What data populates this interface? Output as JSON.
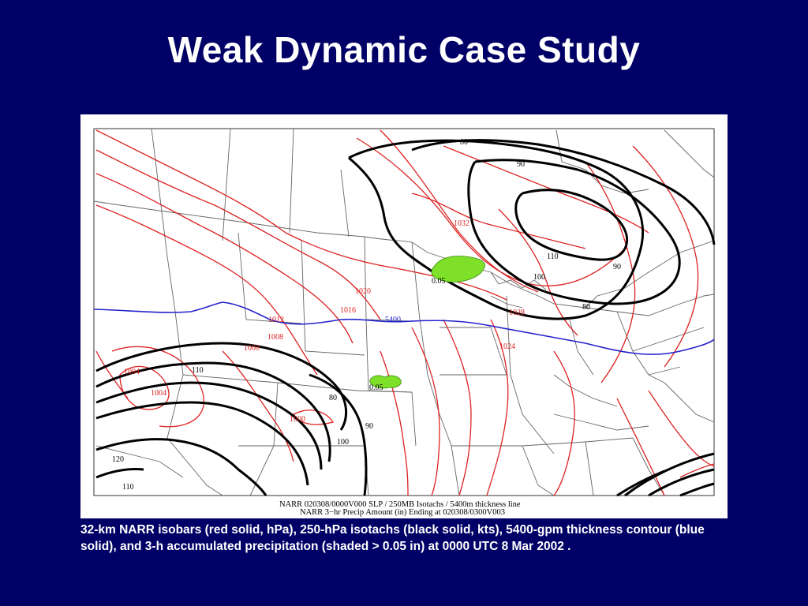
{
  "title": "Weak Dynamic Case Study",
  "map": {
    "footer_line1": "NARR 020308/0000V000 SLP / 250MB Isotachs / 5400m thickness line",
    "footer_line2": "NARR 3−hr Precip Amount (in) Ending at 020308/0300V003",
    "colors": {
      "isobar": "#dd2222",
      "isotach": "#000000",
      "thickness": "#2222cc",
      "precip": "#7fe02a",
      "borders": "#555555"
    },
    "isobar_labels": [
      "1032",
      "1028",
      "1024",
      "1020",
      "1016",
      "1012",
      "1008",
      "1004",
      "1000",
      "1004",
      "1000"
    ],
    "isotach_labels": [
      "80",
      "90",
      "110",
      "100",
      "90",
      "80",
      "110",
      "80",
      "90",
      "100",
      "120",
      "110"
    ],
    "thickness_label": "5400",
    "precip_labels": [
      "0.05",
      "0.05"
    ]
  },
  "caption": "32-km NARR isobars (red solid, hPa), 250-hPa isotachs (black solid, kts), 5400-gpm thickness contour (blue solid), and 3-h accumulated precipitation (shaded > 0.05 in) at 0000 UTC 8 Mar 2002 ."
}
